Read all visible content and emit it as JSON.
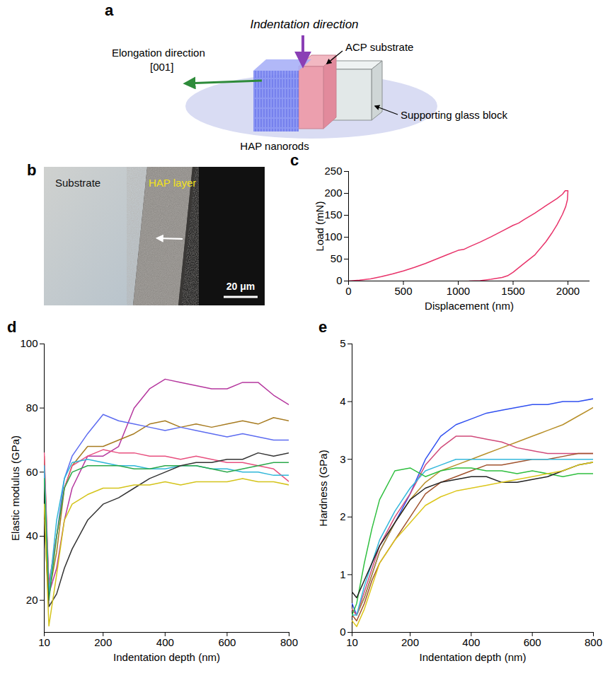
{
  "chart_data": [
    {
      "type": "diagram",
      "panel": "a",
      "title": "Indentation direction",
      "labels": {
        "elongation": "Elongation direction",
        "direction": "[001]",
        "substrate": "ACP substrate",
        "glass": "Supporting glass block",
        "rods": "HAP nanorods"
      }
    },
    {
      "type": "image",
      "panel": "b",
      "labels": {
        "substrate": "Substrate",
        "layer": "HAP layer"
      },
      "scale_bar": "20 μm"
    },
    {
      "type": "line",
      "panel": "c",
      "x_label": "Displacement (nm)",
      "y_label": "Load (mN)",
      "x": [
        0,
        100,
        200,
        300,
        400,
        500,
        600,
        700,
        800,
        900,
        1000,
        1050,
        1100,
        1200,
        1300,
        1400,
        1500,
        1550,
        1600,
        1700,
        1800,
        1900,
        1950,
        1975,
        2000,
        1995,
        1980,
        1950,
        1900,
        1850,
        1800,
        1700,
        1600,
        1500,
        1450,
        1400,
        1300,
        1200,
        1100
      ],
      "series": [
        {
          "color": "#e8336a",
          "values": [
            0,
            2,
            5,
            10,
            16,
            23,
            31,
            40,
            50,
            60,
            70,
            72,
            78,
            89,
            101,
            114,
            127,
            132,
            140,
            155,
            172,
            188,
            198,
            206,
            206,
            185,
            170,
            152,
            128,
            108,
            90,
            60,
            40,
            20,
            12,
            8,
            4,
            1,
            0
          ]
        }
      ],
      "xlim": [
        0,
        2200
      ],
      "xticks": [
        0,
        500,
        1000,
        1500,
        2000
      ],
      "ylim": [
        0,
        250
      ],
      "yticks": [
        0,
        50,
        100,
        150,
        200,
        250
      ]
    },
    {
      "type": "line",
      "panel": "d",
      "x_label": "Indentation depth (nm)",
      "y_label": "Elastic modulus (GPa)",
      "x": [
        10,
        25,
        50,
        75,
        100,
        150,
        200,
        250,
        300,
        350,
        400,
        450,
        500,
        550,
        600,
        650,
        700,
        750,
        800
      ],
      "series": [
        {
          "color": "#b5379e",
          "values": [
            60,
            22,
            30,
            45,
            55,
            65,
            65,
            68,
            80,
            86,
            89,
            88,
            87,
            86,
            86,
            88,
            88,
            84,
            81
          ]
        },
        {
          "color": "#a77b20",
          "values": [
            65,
            22,
            35,
            55,
            62,
            68,
            68,
            70,
            72,
            75,
            76,
            74,
            75,
            74,
            75,
            76,
            75,
            77,
            76
          ]
        },
        {
          "color": "#5d6cf0",
          "values": [
            60,
            25,
            40,
            58,
            65,
            72,
            78,
            76,
            75,
            74,
            73,
            74,
            73,
            72,
            71,
            72,
            71,
            70,
            70
          ]
        },
        {
          "color": "#e8507f",
          "values": [
            66,
            25,
            40,
            55,
            62,
            65,
            67,
            66,
            66,
            65,
            65,
            64,
            65,
            64,
            63,
            63,
            62,
            61,
            57
          ]
        },
        {
          "color": "#2fb6d8",
          "values": [
            62,
            22,
            45,
            58,
            63,
            64,
            63,
            62,
            62,
            61,
            61,
            62,
            62,
            61,
            61,
            60,
            60,
            59,
            59
          ]
        },
        {
          "color": "#2aa84a",
          "values": [
            58,
            20,
            40,
            55,
            60,
            62,
            62,
            62,
            61,
            61,
            62,
            62,
            62,
            61,
            60,
            61,
            62,
            63,
            63
          ]
        },
        {
          "color": "#333333",
          "values": [
            45,
            18,
            22,
            30,
            36,
            45,
            50,
            52,
            55,
            58,
            60,
            62,
            63,
            63,
            64,
            64,
            66,
            65,
            66
          ]
        },
        {
          "color": "#d4c41b",
          "values": [
            50,
            12,
            28,
            45,
            50,
            53,
            55,
            55,
            56,
            56,
            57,
            56,
            57,
            57,
            57,
            58,
            57,
            57,
            56
          ]
        }
      ],
      "xlim": [
        10,
        800
      ],
      "xticks": [
        10,
        200,
        400,
        600,
        800
      ],
      "ylim": [
        10,
        100
      ],
      "yticks": [
        20,
        40,
        60,
        80,
        100
      ]
    },
    {
      "type": "line",
      "panel": "e",
      "x_label": "Indentation depth (nm)",
      "y_label": "Hardness (GPa)",
      "x": [
        10,
        25,
        50,
        75,
        100,
        150,
        200,
        250,
        300,
        350,
        400,
        450,
        500,
        550,
        600,
        650,
        700,
        750,
        800
      ],
      "series": [
        {
          "color": "#2f4ff0",
          "values": [
            0.5,
            0.3,
            0.6,
            1.0,
            1.4,
            1.9,
            2.4,
            3.0,
            3.4,
            3.6,
            3.7,
            3.8,
            3.85,
            3.9,
            3.95,
            3.95,
            4.0,
            4.0,
            4.05
          ]
        },
        {
          "color": "#b8902a",
          "values": [
            0.4,
            0.3,
            0.6,
            1.0,
            1.4,
            1.9,
            2.3,
            2.6,
            2.8,
            2.9,
            3.0,
            3.1,
            3.2,
            3.3,
            3.4,
            3.5,
            3.6,
            3.75,
            3.9
          ]
        },
        {
          "color": "#d04a7a",
          "values": [
            0.4,
            0.3,
            0.7,
            1.1,
            1.5,
            2.0,
            2.4,
            2.9,
            3.2,
            3.4,
            3.4,
            3.35,
            3.3,
            3.2,
            3.15,
            3.1,
            3.1,
            3.1,
            3.1
          ]
        },
        {
          "color": "#a0522d",
          "values": [
            0.3,
            0.2,
            0.5,
            0.9,
            1.2,
            1.6,
            2.0,
            2.4,
            2.6,
            2.7,
            2.8,
            2.9,
            2.9,
            2.95,
            3.0,
            3.0,
            3.05,
            3.1,
            3.1
          ]
        },
        {
          "color": "#35b8dc",
          "values": [
            0.3,
            0.3,
            0.8,
            1.2,
            1.6,
            2.1,
            2.5,
            2.8,
            2.9,
            3.0,
            3.0,
            3.0,
            3.0,
            3.0,
            3.0,
            3.0,
            3.0,
            3.0,
            3.0
          ]
        },
        {
          "color": "#2fbf3f",
          "values": [
            0.3,
            0.5,
            1.2,
            1.8,
            2.3,
            2.8,
            2.85,
            2.7,
            2.8,
            2.85,
            2.85,
            2.8,
            2.8,
            2.75,
            2.8,
            2.75,
            2.7,
            2.75,
            2.75
          ]
        },
        {
          "color": "#222222",
          "values": [
            0.7,
            0.6,
            0.9,
            1.2,
            1.5,
            1.9,
            2.3,
            2.5,
            2.6,
            2.65,
            2.7,
            2.7,
            2.6,
            2.6,
            2.65,
            2.7,
            2.8,
            2.9,
            2.95
          ]
        },
        {
          "color": "#dcc61c",
          "values": [
            0.2,
            0.1,
            0.4,
            0.8,
            1.2,
            1.6,
            1.9,
            2.2,
            2.35,
            2.45,
            2.5,
            2.55,
            2.6,
            2.65,
            2.7,
            2.75,
            2.8,
            2.9,
            2.95
          ]
        }
      ],
      "xlim": [
        10,
        800
      ],
      "xticks": [
        10,
        200,
        400,
        600,
        800
      ],
      "ylim": [
        0,
        5
      ],
      "yticks": [
        0,
        1,
        2,
        3,
        4,
        5
      ]
    }
  ]
}
